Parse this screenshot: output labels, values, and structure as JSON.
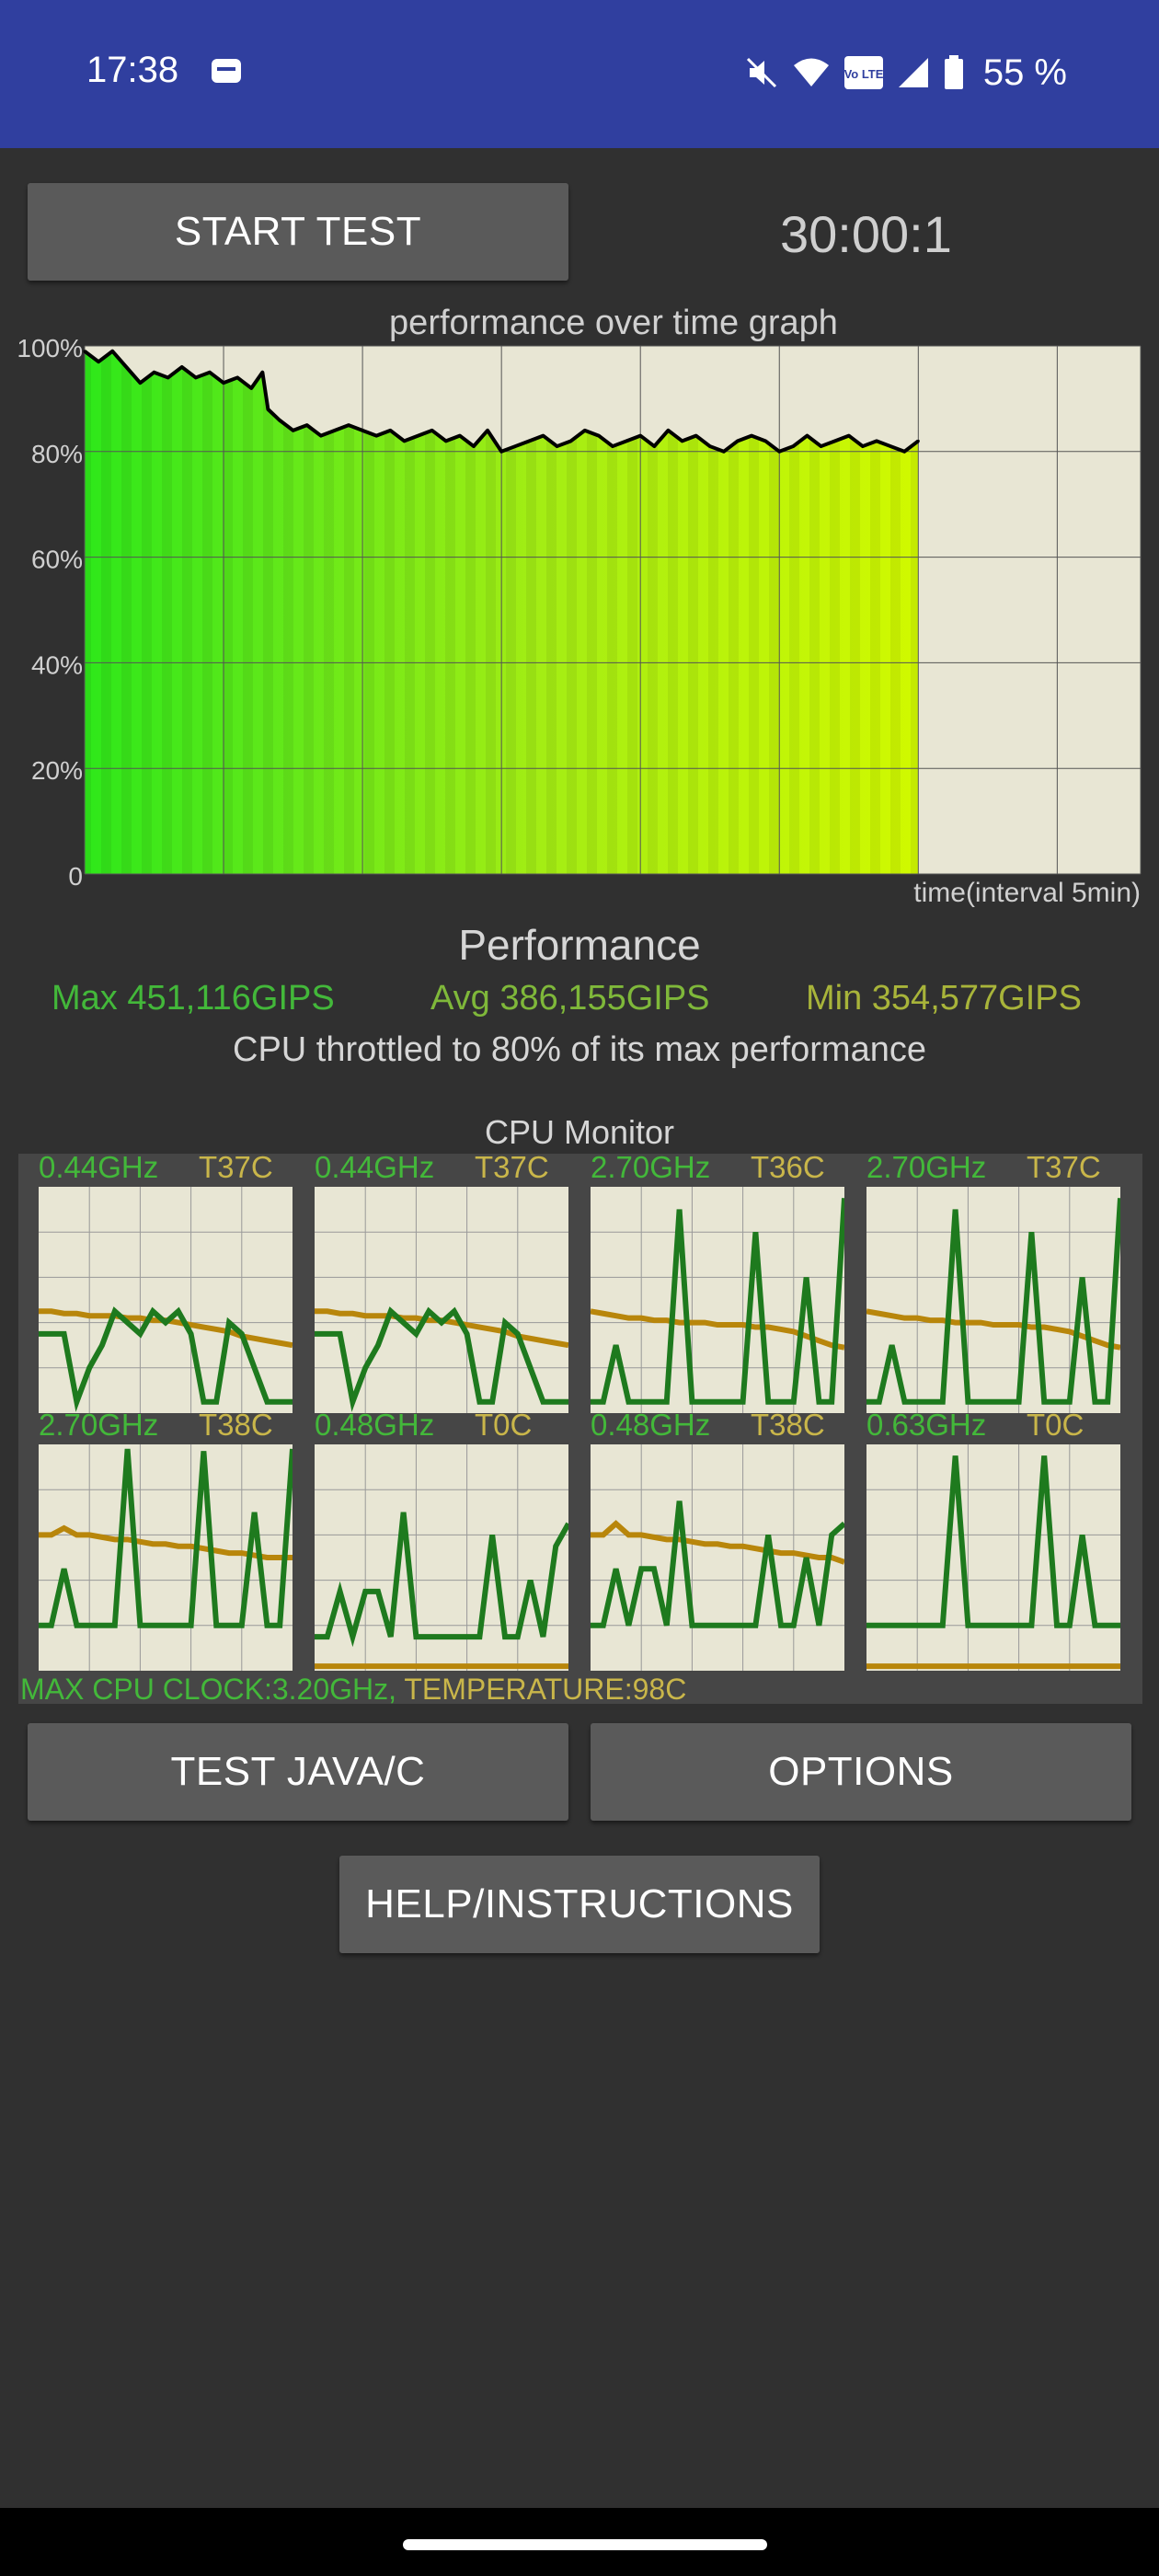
{
  "status_bar": {
    "time": "17:38",
    "battery_percent": "55 %",
    "volte": "Vo LTE",
    "icons": [
      "sim-card-icon",
      "mute-icon",
      "wifi-icon",
      "volte-icon",
      "signal-icon",
      "battery-icon"
    ]
  },
  "controls": {
    "start_test": "START TEST",
    "timer": "30:00:1",
    "test_java": "TEST JAVA/C",
    "options": "OPTIONS",
    "help": "HELP/INSTRUCTIONS"
  },
  "chart_data": [
    {
      "type": "area",
      "title": "performance over time graph",
      "xlabel": "time(interval 5min)",
      "ylabel": "",
      "y_tick_labels": [
        "100%",
        "80%",
        "60%",
        "40%",
        "20%",
        "0"
      ],
      "ylim": [
        0,
        100
      ],
      "x_domain_minutes": [
        0,
        38
      ],
      "x_gridline_minutes": [
        0,
        5,
        10,
        15,
        20,
        25,
        30,
        35
      ],
      "grid": true,
      "series": [
        {
          "x_minutes": [
            0,
            0.5,
            1,
            1.5,
            2,
            2.5,
            3,
            3.5,
            4,
            4.5,
            5,
            5.5,
            6,
            6.4,
            6.6,
            7,
            7.5,
            8,
            8.5,
            9,
            9.5,
            10,
            10.5,
            11,
            11.5,
            12,
            12.5,
            13,
            13.5,
            14,
            14.5,
            15,
            15.5,
            16,
            16.5,
            17,
            17.5,
            18,
            18.5,
            19,
            19.5,
            20,
            20.5,
            21,
            21.5,
            22,
            22.5,
            23,
            23.5,
            24,
            24.5,
            25,
            25.5,
            26,
            26.5,
            27,
            27.5,
            28,
            28.5,
            29,
            29.5,
            30
          ],
          "values": [
            99,
            97,
            99,
            96,
            93,
            95,
            94,
            96,
            94,
            95,
            93,
            94,
            92,
            95,
            88,
            86,
            84,
            85,
            83,
            84,
            85,
            84,
            83,
            84,
            82,
            83,
            84,
            82,
            83,
            81,
            84,
            80,
            81,
            82,
            83,
            81,
            82,
            84,
            83,
            81,
            82,
            83,
            81,
            84,
            82,
            83,
            81,
            80,
            82,
            83,
            82,
            80,
            81,
            83,
            81,
            82,
            83,
            81,
            82,
            81,
            80,
            82
          ],
          "color": "#000000"
        }
      ]
    },
    {
      "type": "line",
      "title": "CPU Monitor",
      "cores": [
        {
          "freq": "0.44GHz",
          "temp": "T37C",
          "freq_series": [
            0.35,
            0.35,
            0.35,
            0.05,
            0.2,
            0.3,
            0.45,
            0.4,
            0.35,
            0.45,
            0.4,
            0.45,
            0.35,
            0.05,
            0.05,
            0.4,
            0.35,
            0.2,
            0.05,
            0.05,
            0.05
          ],
          "temp_series": [
            0.45,
            0.45,
            0.44,
            0.44,
            0.43,
            0.43,
            0.43,
            0.42,
            0.42,
            0.41,
            0.41,
            0.4,
            0.39,
            0.38,
            0.37,
            0.36,
            0.34,
            0.33,
            0.32,
            0.31,
            0.3
          ]
        },
        {
          "freq": "0.44GHz",
          "temp": "T37C",
          "freq_series": [
            0.35,
            0.35,
            0.35,
            0.05,
            0.2,
            0.3,
            0.45,
            0.4,
            0.35,
            0.45,
            0.4,
            0.45,
            0.35,
            0.05,
            0.05,
            0.4,
            0.35,
            0.2,
            0.05,
            0.05,
            0.05
          ],
          "temp_series": [
            0.45,
            0.45,
            0.44,
            0.44,
            0.43,
            0.43,
            0.43,
            0.42,
            0.42,
            0.41,
            0.41,
            0.4,
            0.39,
            0.38,
            0.37,
            0.36,
            0.34,
            0.33,
            0.32,
            0.31,
            0.3
          ]
        },
        {
          "freq": "2.70GHz",
          "temp": "T36C",
          "freq_series": [
            0.05,
            0.05,
            0.3,
            0.05,
            0.05,
            0.05,
            0.05,
            0.9,
            0.05,
            0.05,
            0.05,
            0.05,
            0.05,
            0.8,
            0.05,
            0.05,
            0.05,
            0.6,
            0.05,
            0.05,
            0.95
          ],
          "temp_series": [
            0.45,
            0.44,
            0.43,
            0.42,
            0.42,
            0.41,
            0.41,
            0.4,
            0.4,
            0.4,
            0.39,
            0.39,
            0.39,
            0.38,
            0.38,
            0.37,
            0.36,
            0.34,
            0.32,
            0.3,
            0.29
          ]
        },
        {
          "freq": "2.70GHz",
          "temp": "T37C",
          "freq_series": [
            0.05,
            0.05,
            0.3,
            0.05,
            0.05,
            0.05,
            0.05,
            0.9,
            0.05,
            0.05,
            0.05,
            0.05,
            0.05,
            0.8,
            0.05,
            0.05,
            0.05,
            0.6,
            0.05,
            0.05,
            0.95
          ],
          "temp_series": [
            0.45,
            0.44,
            0.43,
            0.42,
            0.42,
            0.41,
            0.41,
            0.4,
            0.4,
            0.4,
            0.39,
            0.39,
            0.39,
            0.38,
            0.38,
            0.37,
            0.36,
            0.34,
            0.32,
            0.3,
            0.29
          ]
        },
        {
          "freq": "2.70GHz",
          "temp": "T38C",
          "freq_series": [
            0.2,
            0.2,
            0.45,
            0.2,
            0.2,
            0.2,
            0.2,
            0.98,
            0.2,
            0.2,
            0.2,
            0.2,
            0.2,
            0.97,
            0.2,
            0.2,
            0.2,
            0.7,
            0.2,
            0.2,
            0.98
          ],
          "temp_series": [
            0.6,
            0.6,
            0.63,
            0.6,
            0.6,
            0.59,
            0.58,
            0.58,
            0.57,
            0.56,
            0.56,
            0.55,
            0.55,
            0.54,
            0.53,
            0.52,
            0.52,
            0.51,
            0.5,
            0.5,
            0.5
          ]
        },
        {
          "freq": "0.48GHz",
          "temp": "T0C",
          "freq_series": [
            0.15,
            0.15,
            0.35,
            0.15,
            0.35,
            0.35,
            0.15,
            0.7,
            0.15,
            0.15,
            0.15,
            0.15,
            0.15,
            0.15,
            0.6,
            0.15,
            0.15,
            0.4,
            0.15,
            0.55,
            0.65
          ],
          "temp_series": [
            0.02,
            0.02,
            0.02,
            0.02,
            0.02,
            0.02,
            0.02,
            0.02,
            0.02,
            0.02,
            0.02,
            0.02,
            0.02,
            0.02,
            0.02,
            0.02,
            0.02,
            0.02,
            0.02,
            0.02,
            0.02
          ]
        },
        {
          "freq": "0.48GHz",
          "temp": "T38C",
          "freq_series": [
            0.2,
            0.2,
            0.45,
            0.2,
            0.45,
            0.45,
            0.2,
            0.75,
            0.2,
            0.2,
            0.2,
            0.2,
            0.2,
            0.2,
            0.6,
            0.2,
            0.2,
            0.5,
            0.2,
            0.6,
            0.65
          ],
          "temp_series": [
            0.6,
            0.6,
            0.65,
            0.6,
            0.6,
            0.59,
            0.58,
            0.58,
            0.57,
            0.56,
            0.56,
            0.55,
            0.55,
            0.54,
            0.53,
            0.52,
            0.52,
            0.51,
            0.5,
            0.5,
            0.48
          ]
        },
        {
          "freq": "0.63GHz",
          "temp": "T0C",
          "freq_series": [
            0.2,
            0.2,
            0.2,
            0.2,
            0.2,
            0.2,
            0.2,
            0.95,
            0.2,
            0.2,
            0.2,
            0.2,
            0.2,
            0.2,
            0.95,
            0.2,
            0.2,
            0.6,
            0.2,
            0.2,
            0.2
          ],
          "temp_series": [
            0.02,
            0.02,
            0.02,
            0.02,
            0.02,
            0.02,
            0.02,
            0.02,
            0.02,
            0.02,
            0.02,
            0.02,
            0.02,
            0.02,
            0.02,
            0.02,
            0.02,
            0.02,
            0.02,
            0.02,
            0.02
          ]
        }
      ]
    }
  ],
  "performance": {
    "title": "Performance",
    "max": "Max 451,116GIPS",
    "avg": "Avg 386,155GIPS",
    "min": "Min 354,577GIPS",
    "throttle_text": "CPU throttled to 80% of its max performance"
  },
  "cpu_monitor": {
    "title": "CPU Monitor",
    "footer_clock": "MAX CPU CLOCK:3.20GHz,",
    "footer_temp": "TEMPERATURE:98C"
  },
  "colors": {
    "status_bar": "#303f9f",
    "background": "#303030",
    "freq_line": "#1e7a1e",
    "temp_line": "#b8860b",
    "max_stat": "#43b83a",
    "avg_stat": "#7fb83a",
    "min_stat": "#a8b43a"
  }
}
